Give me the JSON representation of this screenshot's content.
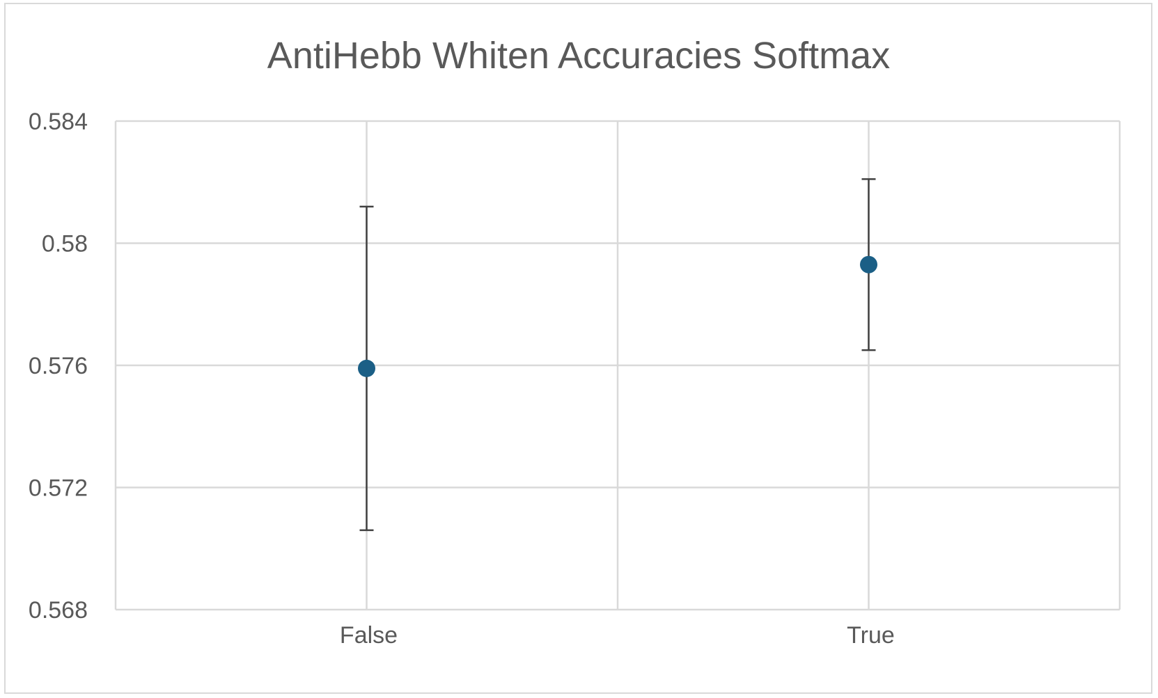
{
  "chart_data": {
    "type": "scatter",
    "title": "AntiHebb Whiten Accuracies Softmax",
    "xlabel": "",
    "ylabel": "",
    "categories": [
      "False",
      "True"
    ],
    "series": [
      {
        "values": [
          0.5759,
          0.5793
        ],
        "error_plus": [
          0.0053,
          0.0028
        ],
        "error_minus": [
          0.0053,
          0.0028
        ]
      }
    ],
    "ylim": [
      0.568,
      0.584
    ],
    "yticks": [
      "0.568",
      "0.572",
      "0.576",
      "0.58",
      "0.584"
    ],
    "grid": true,
    "legend": "none",
    "colors": {
      "marker": "#1b5f86",
      "errorbar": "#404040",
      "grid": "#d9d9d9",
      "text": "#595959"
    }
  }
}
